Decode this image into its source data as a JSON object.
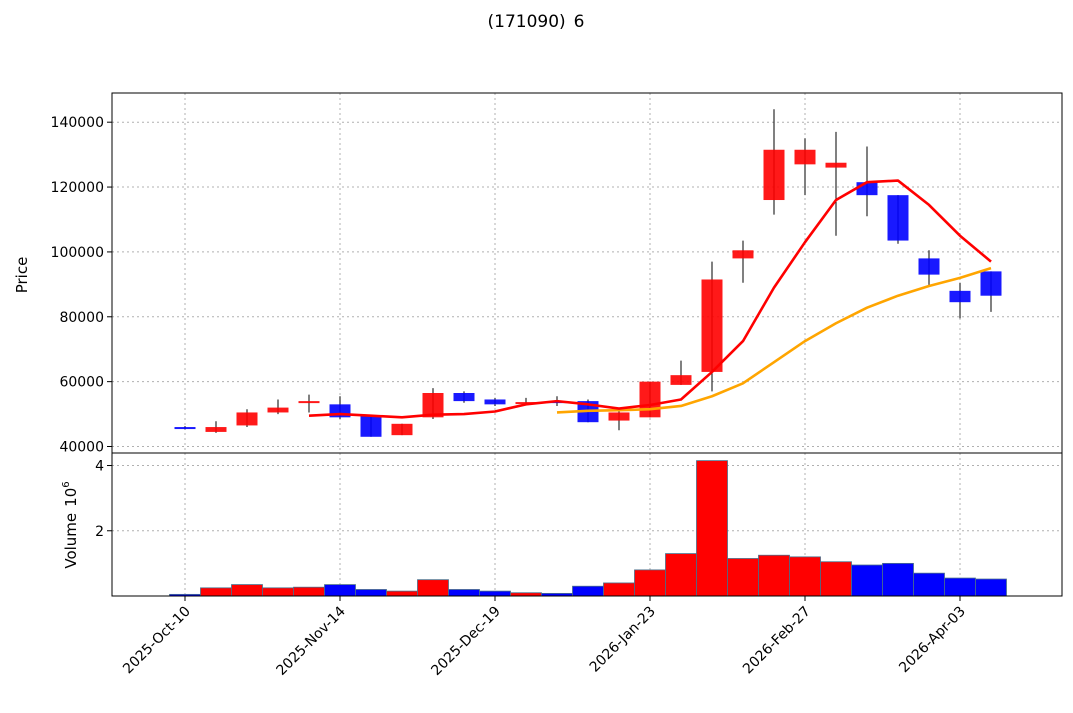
{
  "chart_data": {
    "type": "candlestick",
    "title": "",
    "title_code": "(171090)",
    "title_tail": "6",
    "price_panel": {
      "ylabel": "Price",
      "ylim": [
        38000,
        149000
      ],
      "yticks": [
        40000,
        60000,
        80000,
        100000,
        120000,
        140000
      ],
      "grid": true,
      "up_color": "#ff0000",
      "down_color": "#0000ff",
      "dates": [
        "2025-10-10",
        "2025-10-17",
        "2025-10-24",
        "2025-10-31",
        "2025-11-07",
        "2025-11-14",
        "2025-11-21",
        "2025-11-28",
        "2025-12-05",
        "2025-12-12",
        "2025-12-19",
        "2025-12-26",
        "2026-01-02",
        "2026-01-09",
        "2026-01-16",
        "2026-01-23",
        "2026-01-30",
        "2026-02-06",
        "2026-02-13",
        "2026-02-20",
        "2026-02-27",
        "2026-03-06",
        "2026-03-13",
        "2026-03-20",
        "2026-03-27",
        "2026-04-03",
        "2026-04-10"
      ],
      "candles": [
        {
          "open": 46000,
          "close": 45600,
          "high": 46300,
          "low": 45300
        },
        {
          "open": 44500,
          "close": 46000,
          "high": 47800,
          "low": 44200
        },
        {
          "open": 46500,
          "close": 50500,
          "high": 51500,
          "low": 46000
        },
        {
          "open": 50500,
          "close": 52000,
          "high": 54500,
          "low": 50000
        },
        {
          "open": 53500,
          "close": 54000,
          "high": 56000,
          "low": 50500
        },
        {
          "open": 53000,
          "close": 49000,
          "high": 55500,
          "low": 48500
        },
        {
          "open": 49500,
          "close": 43000,
          "high": 49500,
          "low": 43000
        },
        {
          "open": 43500,
          "close": 47000,
          "high": 47000,
          "low": 43500
        },
        {
          "open": 49000,
          "close": 56500,
          "high": 58000,
          "low": 48500
        },
        {
          "open": 56500,
          "close": 54000,
          "high": 57000,
          "low": 53500
        },
        {
          "open": 54500,
          "close": 53000,
          "high": 55000,
          "low": 52500
        },
        {
          "open": 53500,
          "close": 53700,
          "high": 55000,
          "low": 53000
        },
        {
          "open": 54000,
          "close": 53500,
          "high": 55500,
          "low": 52500
        },
        {
          "open": 54000,
          "close": 47500,
          "high": 54500,
          "low": 47500
        },
        {
          "open": 48000,
          "close": 50500,
          "high": 51000,
          "low": 45000
        },
        {
          "open": 49000,
          "close": 60000,
          "high": 60000,
          "low": 49000
        },
        {
          "open": 59000,
          "close": 62000,
          "high": 66500,
          "low": 59000
        },
        {
          "open": 63000,
          "close": 91500,
          "high": 97000,
          "low": 57000
        },
        {
          "open": 98000,
          "close": 100500,
          "high": 103500,
          "low": 90500
        },
        {
          "open": 116000,
          "close": 131500,
          "high": 144000,
          "low": 111500
        },
        {
          "open": 127000,
          "close": 131500,
          "high": 135000,
          "low": 117500
        },
        {
          "open": 126000,
          "close": 127500,
          "high": 137000,
          "low": 105000
        },
        {
          "open": 121500,
          "close": 117500,
          "high": 132500,
          "low": 111000
        },
        {
          "open": 117500,
          "close": 103500,
          "high": 117500,
          "low": 102500
        },
        {
          "open": 98000,
          "close": 93000,
          "high": 100500,
          "low": 89500
        },
        {
          "open": 88000,
          "close": 84500,
          "high": 90500,
          "low": 79500
        },
        {
          "open": 94000,
          "close": 86500,
          "high": 94000,
          "low": 81500
        }
      ],
      "ma_short": {
        "color": "#ff0000",
        "values": [
          null,
          null,
          null,
          null,
          49500,
          50000,
          49500,
          49000,
          49800,
          50000,
          50800,
          53000,
          54000,
          53000,
          51700,
          52800,
          54500,
          63000,
          72500,
          89000,
          103000,
          116000,
          121500,
          122000,
          114500,
          105000,
          97000
        ]
      },
      "ma_long": {
        "color": "#ffa500",
        "values": [
          null,
          null,
          null,
          null,
          null,
          null,
          null,
          null,
          null,
          null,
          null,
          null,
          50500,
          51000,
          51200,
          51500,
          52500,
          55500,
          59500,
          66000,
          72500,
          78000,
          82800,
          86500,
          89500,
          92000,
          95000
        ]
      }
    },
    "volume_panel": {
      "ylabel": "Volume",
      "scale_base": "10",
      "scale_exp": "6",
      "ylim": [
        0,
        4.2
      ],
      "yticks": [
        2,
        4
      ],
      "ytick_labels": [
        "2",
        "4"
      ],
      "grid": true,
      "values": [
        0.05,
        0.25,
        0.35,
        0.25,
        0.27,
        0.35,
        0.2,
        0.15,
        0.5,
        0.2,
        0.15,
        0.1,
        0.08,
        0.3,
        0.4,
        0.8,
        1.3,
        4.15,
        1.15,
        1.25,
        1.2,
        1.05,
        0.95,
        1.0,
        0.7,
        0.55,
        0.52
      ],
      "directions": [
        "down",
        "up",
        "up",
        "up",
        "up",
        "down",
        "down",
        "up",
        "up",
        "down",
        "down",
        "up",
        "down",
        "down",
        "up",
        "up",
        "up",
        "up",
        "up",
        "up",
        "up",
        "up",
        "down",
        "down",
        "down",
        "down",
        "down"
      ]
    },
    "x_ticks": [
      {
        "index": 0,
        "label": "2025-Oct-10"
      },
      {
        "index": 5,
        "label": "2025-Nov-14"
      },
      {
        "index": 10,
        "label": "2025-Dec-19"
      },
      {
        "index": 15,
        "label": "2026-Jan-23"
      },
      {
        "index": 20,
        "label": "2026-Feb-27"
      },
      {
        "index": 25,
        "label": "2026-Apr-03"
      }
    ]
  }
}
